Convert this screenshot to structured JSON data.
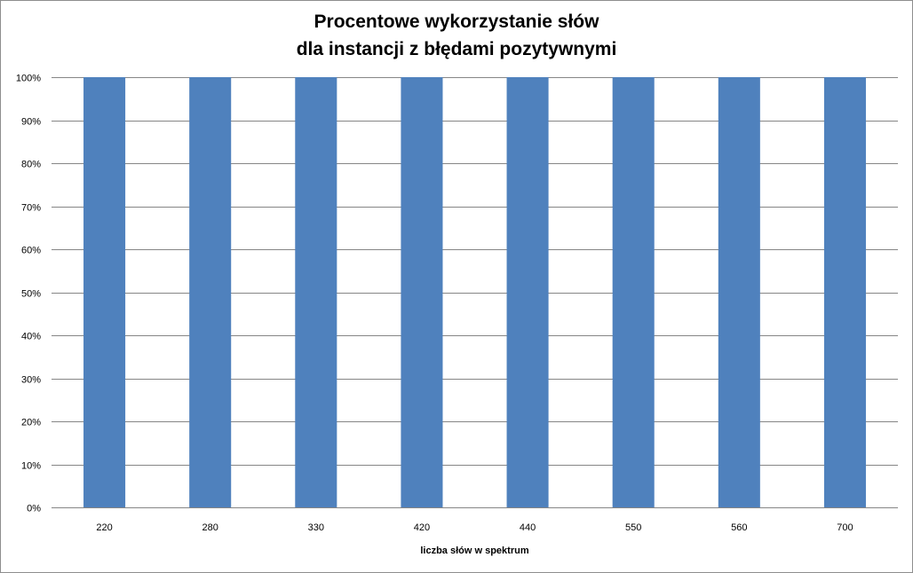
{
  "chart_data": {
    "type": "bar",
    "title_lines": [
      "Procentowe wykorzystanie słów",
      "dla instancji z błędami pozytywnymi"
    ],
    "xlabel": "liczba słów w spektrum",
    "ylabel": "",
    "categories": [
      "220",
      "280",
      "330",
      "420",
      "440",
      "550",
      "560",
      "700"
    ],
    "values": [
      100,
      100,
      100,
      100,
      100,
      100,
      100,
      100
    ],
    "ylim": [
      0,
      100
    ],
    "yticks": [
      "0%",
      "10%",
      "20%",
      "30%",
      "40%",
      "50%",
      "60%",
      "70%",
      "80%",
      "90%",
      "100%"
    ],
    "grid": true,
    "legend": "none",
    "bar_color": "#4f81bd",
    "grid_color": "#868686"
  }
}
